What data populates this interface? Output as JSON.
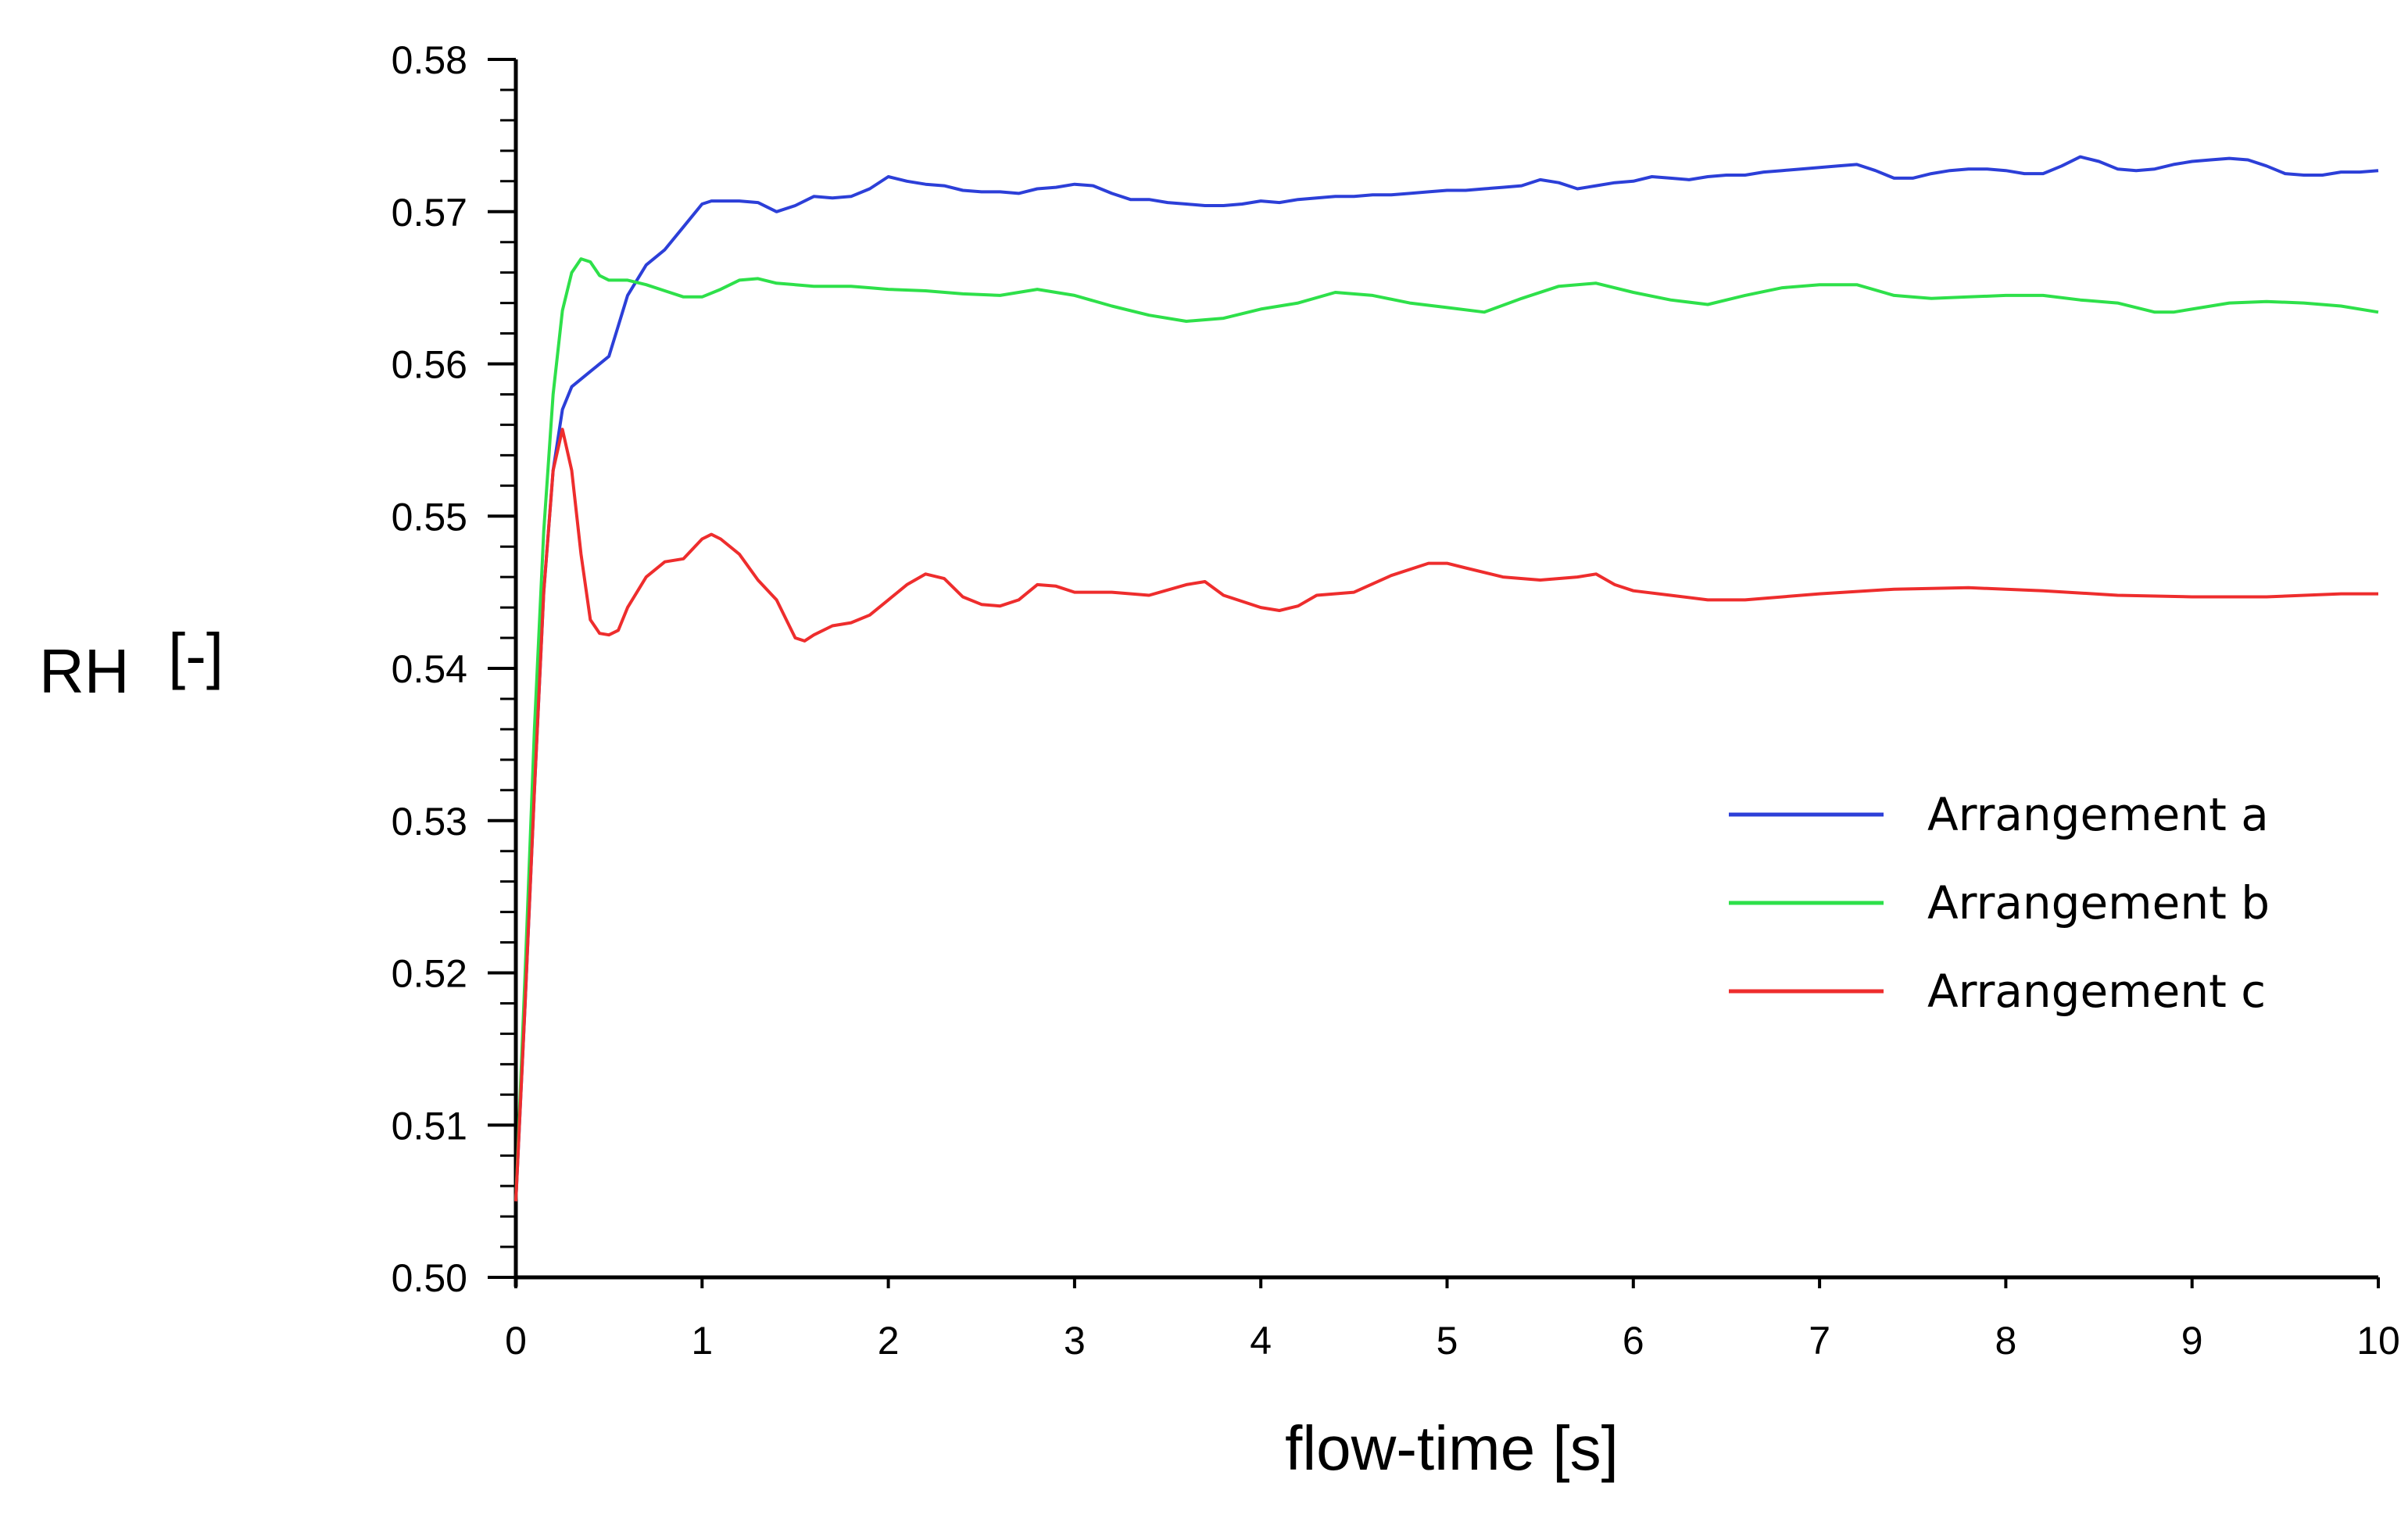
{
  "chart_data": {
    "type": "line",
    "title": "",
    "xlabel": "flow-time [s]",
    "ylabel": "RH",
    "ylabel_unit": "[-]",
    "xlim": [
      0,
      10
    ],
    "ylim": [
      0.5,
      0.58
    ],
    "x_ticks": [
      "0",
      "1",
      "2",
      "3",
      "4",
      "5",
      "6",
      "7",
      "8",
      "9",
      "10"
    ],
    "y_ticks": [
      "0.50",
      "0.51",
      "0.52",
      "0.53",
      "0.54",
      "0.55",
      "0.56",
      "0.57",
      "0.58"
    ],
    "grid": false,
    "legend_position": "right",
    "series": [
      {
        "name": "Arrangement a",
        "color": "#2c3fd8",
        "x": [
          0,
          0.05,
          0.1,
          0.15,
          0.2,
          0.25,
          0.3,
          0.4,
          0.5,
          0.55,
          0.6,
          0.7,
          0.8,
          0.9,
          1.0,
          1.05,
          1.1,
          1.2,
          1.3,
          1.4,
          1.5,
          1.6,
          1.7,
          1.8,
          1.9,
          2.0,
          2.1,
          2.2,
          2.3,
          2.4,
          2.5,
          2.6,
          2.7,
          2.8,
          2.9,
          3.0,
          3.1,
          3.2,
          3.3,
          3.4,
          3.5,
          3.6,
          3.7,
          3.8,
          3.9,
          4.0,
          4.1,
          4.2,
          4.3,
          4.4,
          4.5,
          4.6,
          4.7,
          4.8,
          4.9,
          5.0,
          5.1,
          5.2,
          5.3,
          5.4,
          5.5,
          5.6,
          5.7,
          5.8,
          5.9,
          6.0,
          6.1,
          6.2,
          6.3,
          6.4,
          6.5,
          6.6,
          6.7,
          6.8,
          6.9,
          7.0,
          7.1,
          7.2,
          7.3,
          7.4,
          7.5,
          7.6,
          7.7,
          7.8,
          7.9,
          8.0,
          8.1,
          8.2,
          8.3,
          8.4,
          8.5,
          8.6,
          8.7,
          8.8,
          8.9,
          9.0,
          9.1,
          9.2,
          9.3,
          9.4,
          9.5,
          9.6,
          9.7,
          9.8,
          9.9,
          10.0
        ],
        "y": [
          0.505,
          0.518,
          0.532,
          0.545,
          0.553,
          0.557,
          0.5585,
          0.5595,
          0.5605,
          0.5625,
          0.5645,
          0.5665,
          0.5675,
          0.569,
          0.5705,
          0.5707,
          0.5707,
          0.5707,
          0.5706,
          0.57,
          0.5704,
          0.571,
          0.5709,
          0.571,
          0.5715,
          0.5723,
          0.572,
          0.5718,
          0.5717,
          0.5714,
          0.5713,
          0.5713,
          0.5712,
          0.5715,
          0.5716,
          0.5718,
          0.5717,
          0.5712,
          0.5708,
          0.5708,
          0.5706,
          0.5705,
          0.5704,
          0.5704,
          0.5705,
          0.5707,
          0.5706,
          0.5708,
          0.5709,
          0.571,
          0.571,
          0.5711,
          0.5711,
          0.5712,
          0.5713,
          0.5714,
          0.5714,
          0.5715,
          0.5716,
          0.5717,
          0.5721,
          0.5719,
          0.5715,
          0.5717,
          0.5719,
          0.572,
          0.5723,
          0.5722,
          0.5721,
          0.5723,
          0.5724,
          0.5724,
          0.5726,
          0.5727,
          0.5728,
          0.5729,
          0.573,
          0.5731,
          0.5727,
          0.5722,
          0.5722,
          0.5725,
          0.5727,
          0.5728,
          0.5728,
          0.5727,
          0.5725,
          0.5725,
          0.573,
          0.5736,
          0.5733,
          0.5728,
          0.5727,
          0.5728,
          0.5731,
          0.5733,
          0.5734,
          0.5735,
          0.5734,
          0.573,
          0.5725,
          0.5724,
          0.5724,
          0.5726,
          0.5726,
          0.5727
        ]
      },
      {
        "name": "Arrangement b",
        "color": "#2ee04a",
        "x": [
          0,
          0.05,
          0.1,
          0.15,
          0.2,
          0.25,
          0.3,
          0.35,
          0.4,
          0.45,
          0.5,
          0.6,
          0.7,
          0.8,
          0.9,
          1.0,
          1.1,
          1.2,
          1.3,
          1.4,
          1.5,
          1.6,
          1.7,
          1.8,
          1.9,
          2.0,
          2.2,
          2.4,
          2.6,
          2.8,
          3.0,
          3.2,
          3.4,
          3.6,
          3.8,
          4.0,
          4.2,
          4.4,
          4.6,
          4.8,
          5.0,
          5.2,
          5.4,
          5.6,
          5.8,
          6.0,
          6.2,
          6.4,
          6.6,
          6.8,
          7.0,
          7.2,
          7.4,
          7.6,
          7.8,
          8.0,
          8.2,
          8.4,
          8.6,
          8.8,
          8.9,
          9.0,
          9.2,
          9.4,
          9.6,
          9.8,
          10.0
        ],
        "y": [
          0.505,
          0.52,
          0.536,
          0.549,
          0.558,
          0.5635,
          0.566,
          0.5669,
          0.5667,
          0.5658,
          0.5655,
          0.5655,
          0.5652,
          0.5648,
          0.5644,
          0.5644,
          0.5649,
          0.5655,
          0.5656,
          0.5653,
          0.5652,
          0.5651,
          0.5651,
          0.5651,
          0.565,
          0.5649,
          0.5648,
          0.5646,
          0.5645,
          0.5649,
          0.5645,
          0.5638,
          0.5632,
          0.5628,
          0.563,
          0.5636,
          0.564,
          0.5647,
          0.5645,
          0.564,
          0.5637,
          0.5634,
          0.5643,
          0.5651,
          0.5653,
          0.5647,
          0.5642,
          0.5639,
          0.5645,
          0.565,
          0.5652,
          0.5652,
          0.5645,
          0.5643,
          0.5644,
          0.5645,
          0.5645,
          0.5642,
          0.564,
          0.5634,
          0.5634,
          0.5636,
          0.564,
          0.5641,
          0.564,
          0.5638,
          0.5634
        ]
      },
      {
        "name": "Arrangement c",
        "color": "#ee2d2d",
        "x": [
          0,
          0.05,
          0.1,
          0.15,
          0.2,
          0.25,
          0.3,
          0.35,
          0.4,
          0.45,
          0.5,
          0.55,
          0.6,
          0.7,
          0.8,
          0.9,
          1.0,
          1.05,
          1.1,
          1.2,
          1.3,
          1.4,
          1.5,
          1.55,
          1.6,
          1.7,
          1.8,
          1.9,
          2.0,
          2.1,
          2.2,
          2.3,
          2.4,
          2.5,
          2.6,
          2.7,
          2.8,
          2.9,
          3.0,
          3.2,
          3.4,
          3.6,
          3.7,
          3.8,
          4.0,
          4.1,
          4.2,
          4.3,
          4.5,
          4.7,
          4.9,
          5.0,
          5.1,
          5.3,
          5.5,
          5.7,
          5.8,
          5.9,
          6.0,
          6.2,
          6.4,
          6.6,
          7.0,
          7.4,
          7.8,
          8.2,
          8.6,
          9.0,
          9.4,
          9.8,
          10.0
        ],
        "y": [
          0.505,
          0.518,
          0.532,
          0.545,
          0.553,
          0.5557,
          0.553,
          0.5475,
          0.5432,
          0.5423,
          0.5422,
          0.5425,
          0.544,
          0.546,
          0.547,
          0.5472,
          0.5485,
          0.5488,
          0.5485,
          0.5475,
          0.5458,
          0.5445,
          0.542,
          0.5418,
          0.5422,
          0.5428,
          0.543,
          0.5435,
          0.5445,
          0.5455,
          0.5462,
          0.5459,
          0.5447,
          0.5442,
          0.5441,
          0.5445,
          0.5455,
          0.5454,
          0.545,
          0.545,
          0.5448,
          0.5455,
          0.5457,
          0.5448,
          0.544,
          0.5438,
          0.5441,
          0.5448,
          0.545,
          0.5461,
          0.5469,
          0.5469,
          0.5466,
          0.546,
          0.5458,
          0.546,
          0.5462,
          0.5455,
          0.5451,
          0.5448,
          0.5445,
          0.5445,
          0.5449,
          0.5452,
          0.5453,
          0.5451,
          0.5448,
          0.5447,
          0.5447,
          0.5449,
          0.5449
        ]
      }
    ]
  }
}
